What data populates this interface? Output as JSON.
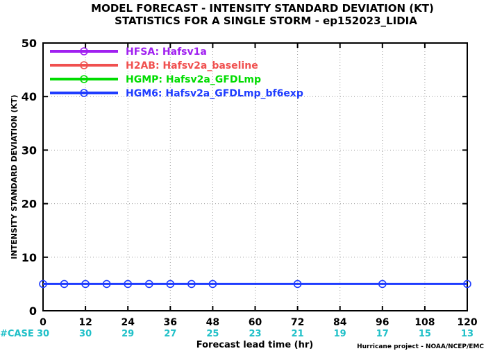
{
  "chart_data": {
    "type": "line",
    "title": "MODEL FORECAST - INTENSITY STANDARD DEVIATION (KT)",
    "subtitle": "STATISTICS FOR A SINGLE STORM - ep152023_LIDIA",
    "xlabel": "Forecast lead time (hr)",
    "ylabel": "INTENSITY STANDARD DEVIATION (KT)",
    "xlim": [
      0,
      120
    ],
    "ylim": [
      0,
      50
    ],
    "x_ticks": [
      0,
      12,
      24,
      36,
      48,
      60,
      72,
      84,
      96,
      108,
      120
    ],
    "y_ticks": [
      0,
      10,
      20,
      30,
      40,
      50
    ],
    "grid": true,
    "legend_position": "top-left",
    "case_label": "#CASE",
    "case_counts": [
      "30",
      "30",
      "29",
      "27",
      "25",
      "23",
      "21",
      "19",
      "17",
      "15",
      "13"
    ],
    "credit": "Hurricane project - NOAA/NCEP/EMC",
    "series": [
      {
        "name": "HFSA:  Hafsv1a",
        "color": "#a020f0",
        "x": [],
        "y": []
      },
      {
        "name": "H2AB:  Hafsv2a_baseline",
        "color": "#f0504f",
        "x": [],
        "y": []
      },
      {
        "name": "HGMP:  Hafsv2a_GFDLmp",
        "color": "#00dc00",
        "x": [],
        "y": []
      },
      {
        "name": "HGM6:  Hafsv2a_GFDLmp_bf6exp",
        "color": "#1e3cff",
        "x": [
          0,
          6,
          12,
          18,
          24,
          30,
          36,
          42,
          48,
          72,
          96,
          120
        ],
        "y": [
          5,
          5,
          5,
          5,
          5,
          5,
          5,
          5,
          5,
          5,
          5,
          5
        ]
      }
    ]
  }
}
